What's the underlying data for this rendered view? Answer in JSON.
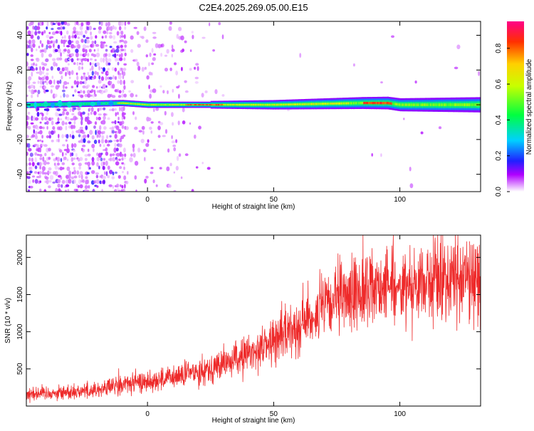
{
  "title": "C2E4.2025.269.05.00.E15",
  "chart_data": [
    {
      "type": "heatmap",
      "xlabel": "Height of straight line (km)",
      "ylabel": "Frequency (Hz)",
      "xlim": [
        -48,
        132
      ],
      "ylim": [
        -50,
        48
      ],
      "x_ticks": [
        0,
        50,
        100
      ],
      "y_ticks": [
        -40,
        -20,
        0,
        20,
        40
      ],
      "colorbar": {
        "label": "Normalized spectral amplitude",
        "range": [
          0,
          0.95
        ],
        "ticks": [
          0.0,
          0.2,
          0.4,
          0.6,
          0.8
        ]
      },
      "ridge": {
        "description_values": "dominant frequency near 0 Hz across heights",
        "points": [
          [
            -45,
            0
          ],
          [
            -10,
            1
          ],
          [
            0,
            0
          ],
          [
            50,
            0
          ],
          [
            85,
            1
          ],
          [
            95,
            1
          ],
          [
            100,
            0
          ],
          [
            132,
            0
          ]
        ]
      }
    },
    {
      "type": "line",
      "xlabel": "Height of straight line (km)",
      "ylabel": "SNR (10 * v/v)",
      "xlim": [
        -48,
        132
      ],
      "ylim": [
        0,
        2300
      ],
      "x_ticks": [
        0,
        50,
        100
      ],
      "y_ticks": [
        500,
        1000,
        1500,
        2000
      ],
      "color": "#ee2a2a",
      "trend": [
        [
          -48,
          170
        ],
        [
          -35,
          180
        ],
        [
          -20,
          220
        ],
        [
          -10,
          290
        ],
        [
          0,
          330
        ],
        [
          10,
          380
        ],
        [
          20,
          470
        ],
        [
          30,
          560
        ],
        [
          40,
          700
        ],
        [
          50,
          880
        ],
        [
          60,
          1100
        ],
        [
          70,
          1320
        ],
        [
          80,
          1500
        ],
        [
          90,
          1620
        ],
        [
          100,
          1620
        ],
        [
          110,
          1680
        ],
        [
          120,
          1730
        ],
        [
          132,
          1700
        ]
      ]
    }
  ]
}
